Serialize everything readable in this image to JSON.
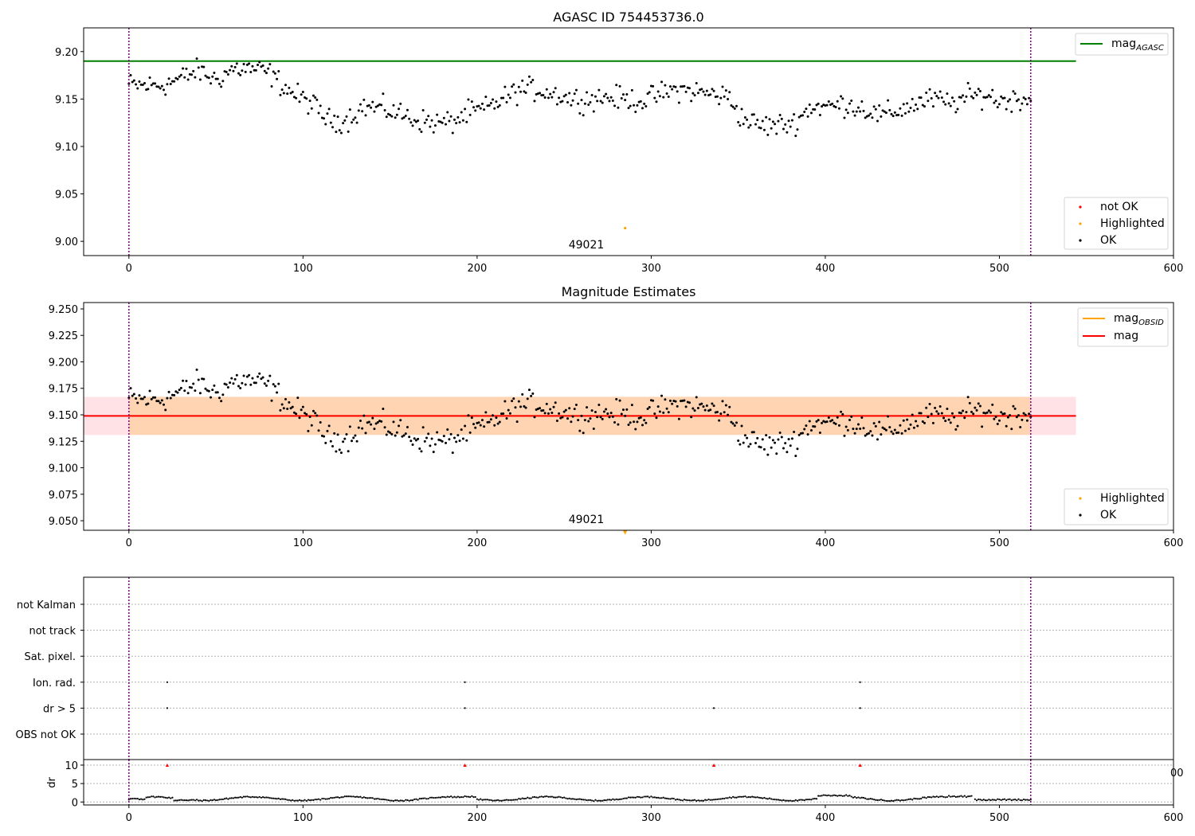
{
  "chart_data": [
    {
      "type": "scatter",
      "title": "AGASC ID 754453736.0",
      "xlim": [
        -26,
        600
      ],
      "ylim": [
        8.985,
        9.225
      ],
      "xticks": [
        0,
        100,
        200,
        300,
        400,
        500,
        600
      ],
      "yticks": [
        "9.00",
        "9.05",
        "9.10",
        "9.15",
        "9.20"
      ],
      "reference_line": {
        "name": "mag",
        "subscript": "AGASC",
        "value": 9.19,
        "color": "#008000"
      },
      "vlines": [
        0,
        518
      ],
      "highlighted": [
        {
          "x": 285,
          "y": 9.014
        }
      ],
      "annotation": {
        "text": "49021",
        "x": 260
      },
      "legend_top": [
        {
          "name": "mag",
          "subscript": "AGASC",
          "color": "#008000"
        }
      ],
      "legend_bottom": [
        {
          "name": "not OK",
          "color": "#ff0000"
        },
        {
          "name": "Highlighted",
          "color": "#ffa500"
        },
        {
          "name": "OK",
          "color": "#000000"
        }
      ]
    },
    {
      "type": "scatter",
      "title": "Magnitude Estimates",
      "xlim": [
        -26,
        600
      ],
      "ylim": [
        9.041,
        9.256
      ],
      "xticks": [
        0,
        100,
        200,
        300,
        400,
        500,
        600
      ],
      "yticks": [
        "9.050",
        "9.075",
        "9.100",
        "9.125",
        "9.150",
        "9.175",
        "9.200",
        "9.225",
        "9.250"
      ],
      "mag_line": {
        "name": "mag",
        "value": 9.149,
        "color": "#ff0000"
      },
      "mag_obsid": {
        "name": "mag",
        "subscript": "OBSID",
        "value": 9.149,
        "band": [
          9.131,
          9.167
        ],
        "color": "#ffa500"
      },
      "vlines": [
        0,
        518
      ],
      "highlighted_marker": {
        "x": 285,
        "y": 9.045
      },
      "annotation": {
        "text": "49021",
        "x": 260
      },
      "legend_top": [
        {
          "name": "mag",
          "subscript": "OBSID",
          "color": "#ffa500"
        },
        {
          "name": "mag",
          "color": "#ff0000"
        }
      ],
      "legend_bottom": [
        {
          "name": "Highlighted",
          "color": "#ffa500"
        },
        {
          "name": "OK",
          "color": "#000000"
        }
      ]
    },
    {
      "type": "scatter",
      "xlim": [
        -26,
        600
      ],
      "xticks": [
        0,
        100,
        200,
        300,
        400,
        500,
        600
      ],
      "categories": [
        "not Kalman",
        "not track",
        "Sat. pixel.",
        "Ion. rad.",
        "dr > 5",
        "OBS not OK"
      ],
      "flags": {
        "Ion. rad.": [
          22,
          193,
          420
        ],
        "dr > 5": [
          22,
          193,
          336,
          420
        ]
      },
      "vlines": [
        0,
        518
      ]
    },
    {
      "type": "scatter",
      "ylabel": "dr",
      "xlim": [
        -26,
        600
      ],
      "ylim": [
        -0.8,
        11.5
      ],
      "yticks": [
        0,
        5,
        10
      ],
      "xticks": [
        0,
        100,
        200,
        300,
        400,
        500,
        600
      ],
      "clipped_marker_x": [
        22,
        193,
        336,
        420
      ],
      "stray_tick_label": "00",
      "vlines": [
        0,
        518
      ]
    }
  ]
}
